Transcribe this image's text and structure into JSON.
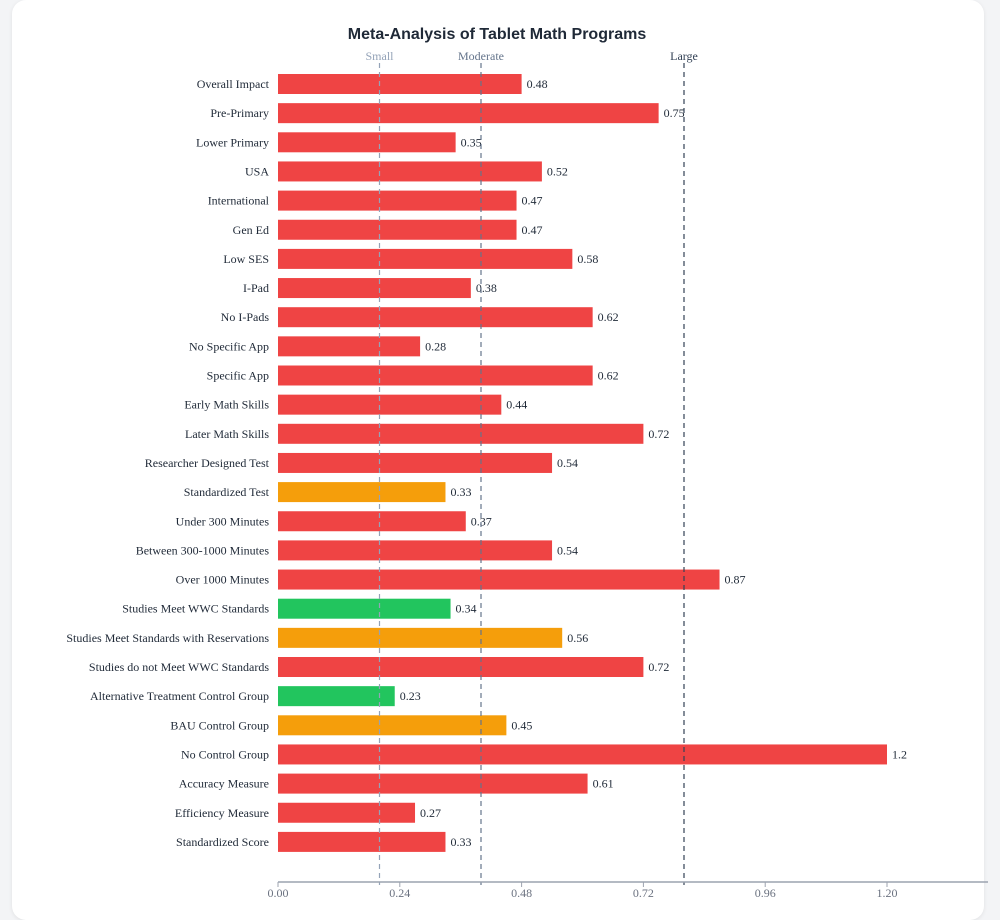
{
  "chart_data": {
    "type": "bar",
    "orientation": "horizontal",
    "title": "Meta-Analysis of Tablet Math Programs",
    "xlabel": "",
    "ylabel": "",
    "xlim": [
      0,
      1.38
    ],
    "xticks": [
      "0.00",
      "0.24",
      "0.48",
      "0.72",
      "0.96",
      "1.20"
    ],
    "xtick_values": [
      0,
      0.24,
      0.48,
      0.72,
      0.96,
      1.2
    ],
    "grid": false,
    "reference_lines": [
      {
        "label": "Small",
        "value": 0.2,
        "color": "#94a3b8"
      },
      {
        "label": "Moderate",
        "value": 0.4,
        "color": "#64748b"
      },
      {
        "label": "Large",
        "value": 0.8,
        "color": "#334155"
      }
    ],
    "colors": {
      "red": "#ef4444",
      "orange": "#f59e0b",
      "green": "#22c55e"
    },
    "bars": [
      {
        "category": "Overall Impact",
        "value": 0.48,
        "label": "0.48",
        "color": "#ef4444"
      },
      {
        "category": "Pre-Primary",
        "value": 0.75,
        "label": "0.75",
        "color": "#ef4444"
      },
      {
        "category": "Lower Primary",
        "value": 0.35,
        "label": "0.35",
        "color": "#ef4444"
      },
      {
        "category": "USA",
        "value": 0.52,
        "label": "0.52",
        "color": "#ef4444"
      },
      {
        "category": "International",
        "value": 0.47,
        "label": "0.47",
        "color": "#ef4444"
      },
      {
        "category": "Gen Ed",
        "value": 0.47,
        "label": "0.47",
        "color": "#ef4444"
      },
      {
        "category": "Low SES",
        "value": 0.58,
        "label": "0.58",
        "color": "#ef4444"
      },
      {
        "category": "I-Pad",
        "value": 0.38,
        "label": "0.38",
        "color": "#ef4444"
      },
      {
        "category": "No I-Pads",
        "value": 0.62,
        "label": "0.62",
        "color": "#ef4444"
      },
      {
        "category": "No Specific App",
        "value": 0.28,
        "label": "0.28",
        "color": "#ef4444"
      },
      {
        "category": "Specific App",
        "value": 0.62,
        "label": "0.62",
        "color": "#ef4444"
      },
      {
        "category": "Early Math Skills",
        "value": 0.44,
        "label": "0.44",
        "color": "#ef4444"
      },
      {
        "category": "Later Math Skills",
        "value": 0.72,
        "label": "0.72",
        "color": "#ef4444"
      },
      {
        "category": "Researcher Designed Test",
        "value": 0.54,
        "label": "0.54",
        "color": "#ef4444"
      },
      {
        "category": "Standardized Test",
        "value": 0.33,
        "label": "0.33",
        "color": "#f59e0b"
      },
      {
        "category": "Under 300 Minutes",
        "value": 0.37,
        "label": "0.37",
        "color": "#ef4444"
      },
      {
        "category": "Between 300-1000 Minutes",
        "value": 0.54,
        "label": "0.54",
        "color": "#ef4444"
      },
      {
        "category": "Over 1000 Minutes",
        "value": 0.87,
        "label": "0.87",
        "color": "#ef4444"
      },
      {
        "category": "Studies Meet WWC Standards",
        "value": 0.34,
        "label": "0.34",
        "color": "#22c55e"
      },
      {
        "category": "Studies Meet Standards with Reservations",
        "value": 0.56,
        "label": "0.56",
        "color": "#f59e0b"
      },
      {
        "category": "Studies do not Meet WWC Standards",
        "value": 0.72,
        "label": "0.72",
        "color": "#ef4444"
      },
      {
        "category": "Alternative Treatment Control Group",
        "value": 0.23,
        "label": "0.23",
        "color": "#22c55e"
      },
      {
        "category": "BAU Control Group",
        "value": 0.45,
        "label": "0.45",
        "color": "#f59e0b"
      },
      {
        "category": "No Control Group",
        "value": 1.2,
        "label": "1.2",
        "color": "#ef4444"
      },
      {
        "category": "Accuracy Measure",
        "value": 0.61,
        "label": "0.61",
        "color": "#ef4444"
      },
      {
        "category": "Efficiency Measure",
        "value": 0.27,
        "label": "0.27",
        "color": "#ef4444"
      },
      {
        "category": "Standardized Score",
        "value": 0.33,
        "label": "0.33",
        "color": "#ef4444"
      }
    ]
  }
}
